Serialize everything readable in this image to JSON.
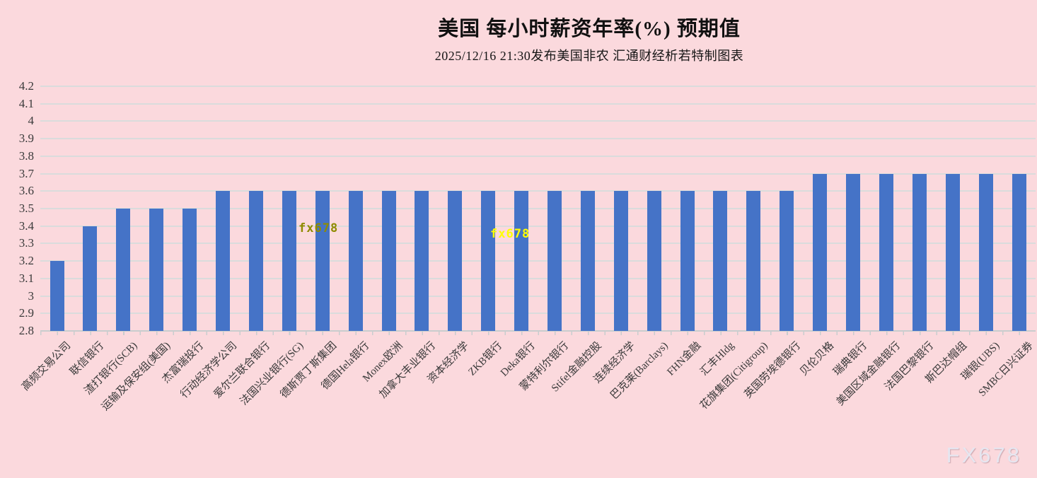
{
  "header": {
    "title": "美国  每小时薪资年率(%)  预期值",
    "subtitle": "2025/12/16 21:30发布美国非农 汇通财经析若特制图表"
  },
  "watermarks": {
    "inline_olive": "fx678",
    "inline_yellow": "fx678",
    "corner": "FX678"
  },
  "colors": {
    "background": "#fbd9dd",
    "bar": "#4573c7",
    "gridline": "#dadcdc",
    "watermark_olive": "#8f8b00",
    "watermark_yellow": "#ffff00"
  },
  "chart_data": {
    "type": "bar",
    "title": "美国 每小时薪资年率(%) 预期值",
    "subtitle": "2025/12/16 21:30发布美国非农 汇通财经析若特制图表",
    "categories": [
      "高频交易公司",
      "联信银行",
      "渣打银行(SCB)",
      "运输及保安组(美国)",
      "杰富瑞投行",
      "行动经济学公司",
      "爱尔兰联合银行",
      "法国兴业银行(SG)",
      "德斯贾丁斯集团",
      "德国Hela银行",
      "Monex欧洲",
      "加拿大丰业银行",
      "资本经济学",
      "ZKB银行",
      "Deka银行",
      "蒙特利尔银行",
      "Stifel金融控股",
      "连续经济学",
      "巴克莱(Barclays)",
      "FHN金融",
      "汇丰Hldg",
      "花旗集团(Citigroup)",
      "英国劳埃德银行",
      "贝伦贝格",
      "瑞典银行",
      "美国区域金融银行",
      "法国巴黎银行",
      "斯巴达帽组",
      "瑞银(UBS)",
      "SMBC日兴证券"
    ],
    "values": [
      3.2,
      3.4,
      3.5,
      3.5,
      3.5,
      3.6,
      3.6,
      3.6,
      3.6,
      3.6,
      3.6,
      3.6,
      3.6,
      3.6,
      3.6,
      3.6,
      3.6,
      3.6,
      3.6,
      3.6,
      3.6,
      3.6,
      3.6,
      3.7,
      3.7,
      3.7,
      3.7,
      3.7,
      3.7,
      3.7
    ],
    "ylim": [
      2.8,
      4.2
    ],
    "ytick_step": 0.1,
    "ytick_labels": [
      "4.2",
      "4.1",
      "4",
      "3.9",
      "3.8",
      "3.7",
      "3.6",
      "3.5",
      "3.4",
      "3.3",
      "3.2",
      "3.1",
      "3",
      "2.9",
      "2.8"
    ],
    "xlabel": "",
    "ylabel": "",
    "grid": true,
    "legend": "none"
  }
}
